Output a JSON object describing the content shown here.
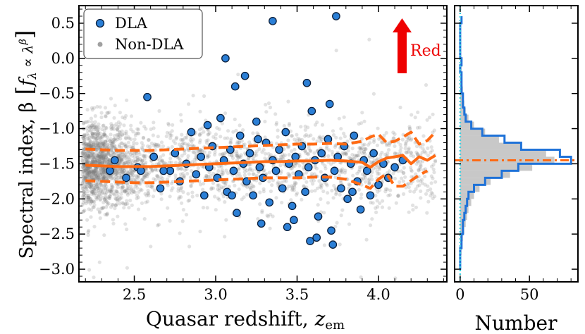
{
  "chart_data": [
    {
      "type": "scatter",
      "panel": "main",
      "xlabel": "Quasar redshift, z_em",
      "xlabel_main": "Quasar redshift, ",
      "xlabel_var": "z",
      "xlabel_sub": "em",
      "ylabel": "Spectral index, β [f_λ ∝ λ^β]",
      "ylabel_main": "Spectral index, β",
      "ylabel_formula": "f",
      "ylabel_formula_sub": "λ",
      "ylabel_formula_mid": " ∝ λ",
      "ylabel_formula_sup": "β",
      "xlim": [
        2.16,
        4.42
      ],
      "ylim": [
        -3.18,
        0.75
      ],
      "x_ticks": [
        2.5,
        3.0,
        3.5,
        4.0
      ],
      "x_tick_labels": [
        "2.5",
        "3.0",
        "3.5",
        "4.0"
      ],
      "y_ticks": [
        0.5,
        0.0,
        -0.5,
        -1.0,
        -1.5,
        -2.0,
        -2.5,
        -3.0
      ],
      "y_tick_labels": [
        "0.5",
        "0.0",
        "−0.5",
        "−1.0",
        "−1.5",
        "−2.0",
        "−2.5",
        "−3.0"
      ],
      "legend": {
        "position": "top-left",
        "entries": [
          {
            "label": "DLA",
            "marker": "circle",
            "color": "#2b7fd6"
          },
          {
            "label": "Non-DLA",
            "marker": "dot",
            "color": "#9a9a9a"
          }
        ]
      },
      "annotation": {
        "text": "Red",
        "arrow": "up",
        "color": "#ee0000"
      },
      "series": [
        {
          "name": "Median (non-DLA)",
          "style": "solid",
          "color": "#ff6a13",
          "x": [
            2.2,
            2.3,
            2.4,
            2.5,
            2.6,
            2.7,
            2.8,
            2.9,
            3.0,
            3.1,
            3.2,
            3.3,
            3.4,
            3.5,
            3.6,
            3.7,
            3.8,
            3.9,
            3.95,
            4.0,
            4.05,
            4.1,
            4.15,
            4.2,
            4.25,
            4.3,
            4.35
          ],
          "values": [
            -1.52,
            -1.53,
            -1.54,
            -1.54,
            -1.54,
            -1.53,
            -1.52,
            -1.51,
            -1.5,
            -1.49,
            -1.48,
            -1.47,
            -1.47,
            -1.46,
            -1.46,
            -1.45,
            -1.46,
            -1.48,
            -1.55,
            -1.47,
            -1.42,
            -1.4,
            -1.38,
            -1.5,
            -1.4,
            -1.45,
            -1.38
          ]
        },
        {
          "name": "Upper bound",
          "style": "dashed",
          "color": "#ff6a13",
          "x": [
            2.2,
            2.3,
            2.4,
            2.5,
            2.6,
            2.7,
            2.8,
            2.9,
            3.0,
            3.1,
            3.2,
            3.3,
            3.4,
            3.5,
            3.6,
            3.7,
            3.8,
            3.9,
            3.95,
            4.0,
            4.05,
            4.1,
            4.15,
            4.2,
            4.25,
            4.3,
            4.35
          ],
          "values": [
            -1.29,
            -1.3,
            -1.31,
            -1.31,
            -1.31,
            -1.3,
            -1.29,
            -1.28,
            -1.27,
            -1.26,
            -1.25,
            -1.24,
            -1.23,
            -1.22,
            -1.22,
            -1.21,
            -1.22,
            -1.18,
            -1.12,
            -1.08,
            -1.2,
            -1.18,
            -1.12,
            -1.05,
            -1.22,
            -1.17,
            -1.05
          ]
        },
        {
          "name": "Lower bound",
          "style": "dashed",
          "color": "#ff6a13",
          "x": [
            2.2,
            2.3,
            2.4,
            2.5,
            2.6,
            2.7,
            2.8,
            2.9,
            3.0,
            3.1,
            3.2,
            3.3,
            3.4,
            3.5,
            3.6,
            3.7,
            3.8,
            3.9,
            3.95,
            4.0,
            4.05,
            4.1,
            4.15,
            4.2,
            4.25,
            4.3
          ],
          "values": [
            -1.74,
            -1.75,
            -1.76,
            -1.77,
            -1.77,
            -1.76,
            -1.75,
            -1.74,
            -1.73,
            -1.72,
            -1.71,
            -1.7,
            -1.7,
            -1.7,
            -1.69,
            -1.69,
            -1.72,
            -1.8,
            -1.85,
            -1.72,
            -1.64,
            -1.82,
            -1.82,
            -1.74,
            -1.66,
            -1.6
          ]
        }
      ],
      "dla_sample": {
        "name": "DLA",
        "marker": "circle",
        "color": "#2b7fd6",
        "edge": "#0a1e3a",
        "x": [
          2.35,
          2.38,
          2.45,
          2.52,
          2.58,
          2.62,
          2.66,
          2.72,
          2.75,
          2.78,
          2.82,
          2.85,
          2.88,
          2.91,
          2.93,
          2.96,
          2.98,
          3.01,
          3.03,
          3.05,
          3.07,
          3.09,
          3.11,
          3.13,
          3.15,
          3.17,
          3.19,
          3.21,
          3.23,
          3.25,
          3.27,
          3.29,
          3.31,
          3.33,
          3.35,
          3.37,
          3.39,
          3.41,
          3.43,
          3.45,
          3.47,
          3.49,
          3.51,
          3.53,
          3.55,
          3.57,
          3.59,
          3.61,
          3.63,
          3.65,
          3.67,
          3.69,
          3.71,
          3.73,
          3.75,
          3.77,
          3.79,
          3.81,
          3.83,
          3.85,
          3.87,
          3.89,
          3.91,
          3.93,
          3.95,
          3.97,
          4.0,
          4.03,
          4.06,
          4.1,
          4.15,
          3.35,
          3.74,
          3.06,
          3.18,
          2.54,
          3.28,
          3.44,
          3.72,
          3.56,
          3.1,
          2.95,
          3.48,
          3.62,
          3.7,
          3.84,
          3.58,
          3.12,
          3.26,
          2.68
        ],
        "values": [
          -1.6,
          -1.45,
          -1.7,
          -1.55,
          -0.55,
          -1.4,
          -1.85,
          -1.6,
          -1.35,
          -1.75,
          -1.5,
          -1.05,
          -1.65,
          -1.4,
          -1.95,
          -1.55,
          -1.25,
          -1.7,
          -0.85,
          -1.45,
          -1.9,
          -1.3,
          -1.6,
          -2.2,
          -1.1,
          -1.5,
          -1.75,
          -1.35,
          -1.95,
          -0.9,
          -1.55,
          -1.7,
          -1.2,
          -2.05,
          -1.45,
          -1.6,
          -1.3,
          -1.85,
          -1.05,
          -1.5,
          -2.1,
          -1.4,
          -1.65,
          -1.25,
          -1.9,
          -1.55,
          -0.75,
          -1.45,
          -2.25,
          -1.35,
          -1.7,
          -1.15,
          -2.45,
          -1.6,
          -1.4,
          -1.85,
          -1.25,
          -2.0,
          -1.5,
          -1.1,
          -1.75,
          -2.15,
          -1.45,
          -1.6,
          -1.95,
          -1.35,
          -1.8,
          -1.5,
          -1.7,
          -1.55,
          -1.45,
          0.53,
          0.6,
          0.0,
          -0.25,
          -1.6,
          -2.35,
          -2.4,
          -2.65,
          -0.35,
          -1.95,
          -0.95,
          -2.3,
          -2.55,
          -0.65,
          -1.9,
          -2.6,
          -0.4,
          -1.15,
          -1.6
        ]
      }
    },
    {
      "type": "histogram",
      "panel": "side",
      "xlabel": "Number",
      "xlim": [
        -4,
        85
      ],
      "x_ticks": [
        0,
        50
      ],
      "x_tick_labels": [
        "0",
        "50"
      ],
      "shared_y": true,
      "series": [
        {
          "name": "DLA",
          "style": "step",
          "color": "#1f72d8"
        },
        {
          "name": "Non-DLA",
          "style": "filled",
          "color": "#c8c8c8"
        },
        {
          "name": "Median",
          "style": "dashdot",
          "color": "#ff6a13",
          "value": -1.45
        },
        {
          "name": "Zero",
          "style": "dotted",
          "color": "#3bd0e0",
          "value": 0
        }
      ],
      "bins": [
        -3.0,
        -2.9,
        -2.8,
        -2.7,
        -2.6,
        -2.5,
        -2.4,
        -2.3,
        -2.2,
        -2.1,
        -2.0,
        -1.9,
        -1.8,
        -1.7,
        -1.6,
        -1.5,
        -1.4,
        -1.3,
        -1.2,
        -1.1,
        -1.0,
        -0.9,
        -0.8,
        -0.7,
        -0.6,
        -0.5,
        -0.4,
        -0.3,
        -0.2,
        -0.1,
        0.0,
        0.1,
        0.2,
        0.3,
        0.4,
        0.5,
        0.6
      ],
      "dla_counts": [
        0,
        0,
        0,
        1,
        1,
        2,
        2,
        3,
        4,
        5,
        6,
        10,
        18,
        30,
        42,
        80,
        72,
        44,
        32,
        16,
        8,
        4,
        3,
        2,
        2,
        1,
        1,
        1,
        0,
        1,
        0,
        0,
        0,
        0,
        0,
        1
      ],
      "nondla_counts": [
        0,
        0,
        1,
        1,
        2,
        3,
        4,
        5,
        6,
        8,
        10,
        14,
        22,
        36,
        52,
        68,
        62,
        44,
        28,
        18,
        10,
        6,
        4,
        3,
        2,
        2,
        1,
        1,
        1,
        1,
        0,
        0,
        0,
        0,
        0,
        0
      ]
    }
  ]
}
